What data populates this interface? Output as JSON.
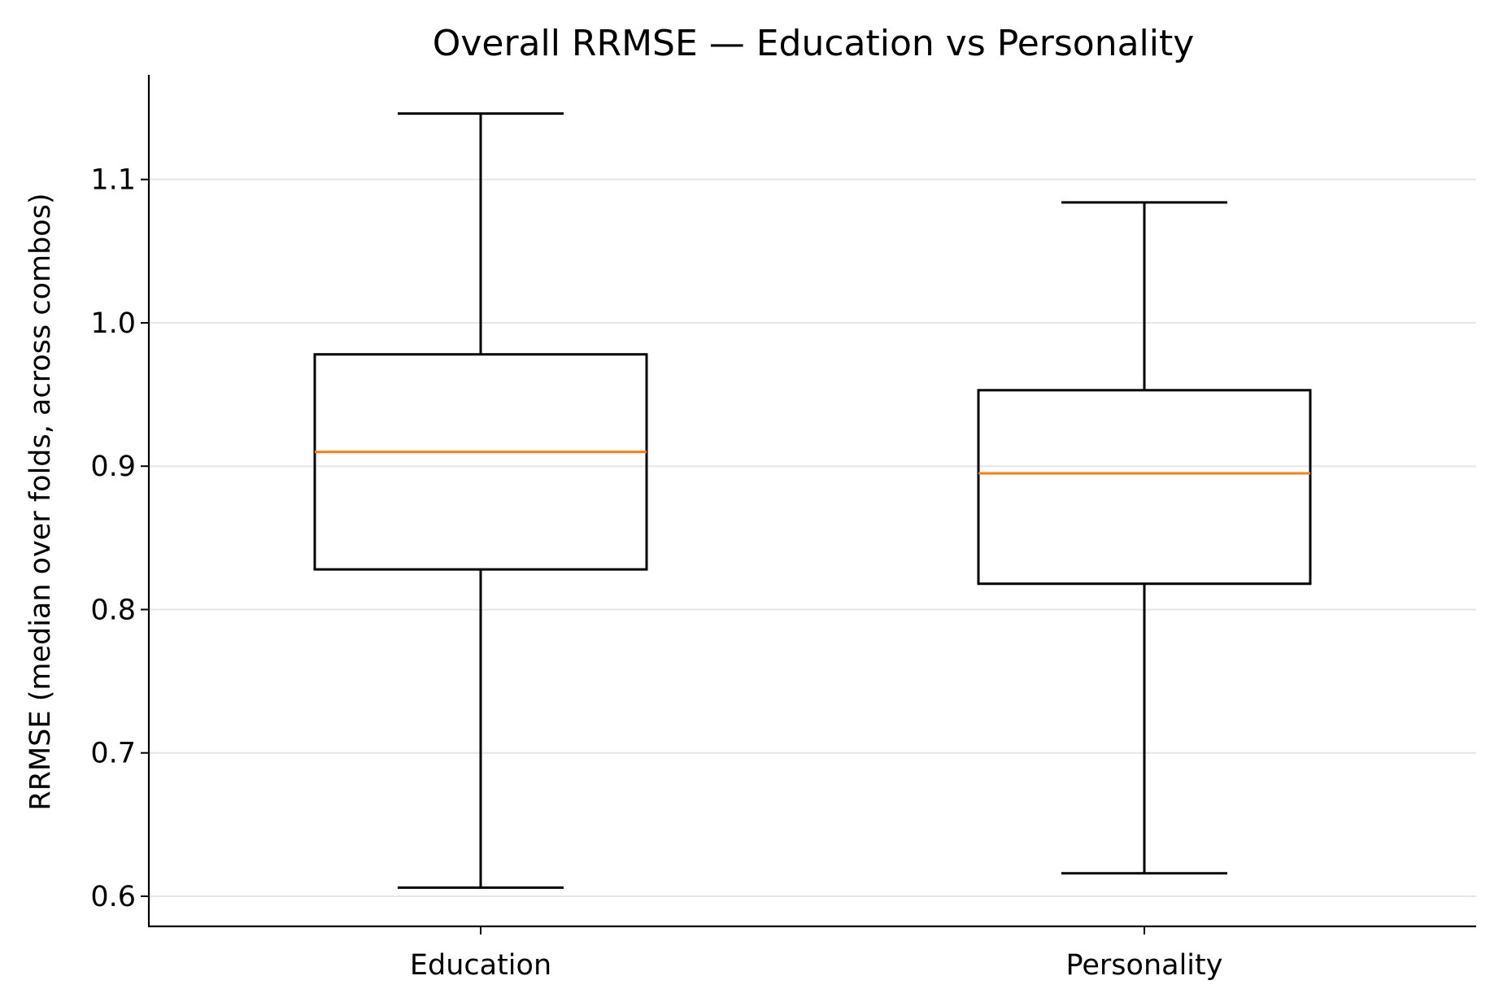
{
  "chart_data": {
    "type": "boxplot",
    "title": "Overall RRMSE — Education vs Personality",
    "xlabel": "",
    "ylabel": "RRMSE (median over folds, across combos)",
    "categories": [
      "Education",
      "Personality"
    ],
    "boxes": [
      {
        "category": "Education",
        "whisker_low": 0.606,
        "q1": 0.828,
        "median": 0.91,
        "q3": 0.978,
        "whisker_high": 1.146
      },
      {
        "category": "Personality",
        "whisker_low": 0.616,
        "q1": 0.818,
        "median": 0.895,
        "q3": 0.953,
        "whisker_high": 1.084
      }
    ],
    "yticks": [
      0.6,
      0.7,
      0.8,
      0.9,
      1.0,
      1.1
    ],
    "ytick_labels": [
      "0.6",
      "0.7",
      "0.8",
      "0.9",
      "1.0",
      "1.1"
    ],
    "ylim": [
      0.579,
      1.173
    ],
    "grid": "y-major",
    "colors": {
      "box": "#000000",
      "median": "#ff7f0e",
      "grid": "#e6e6e6"
    }
  }
}
